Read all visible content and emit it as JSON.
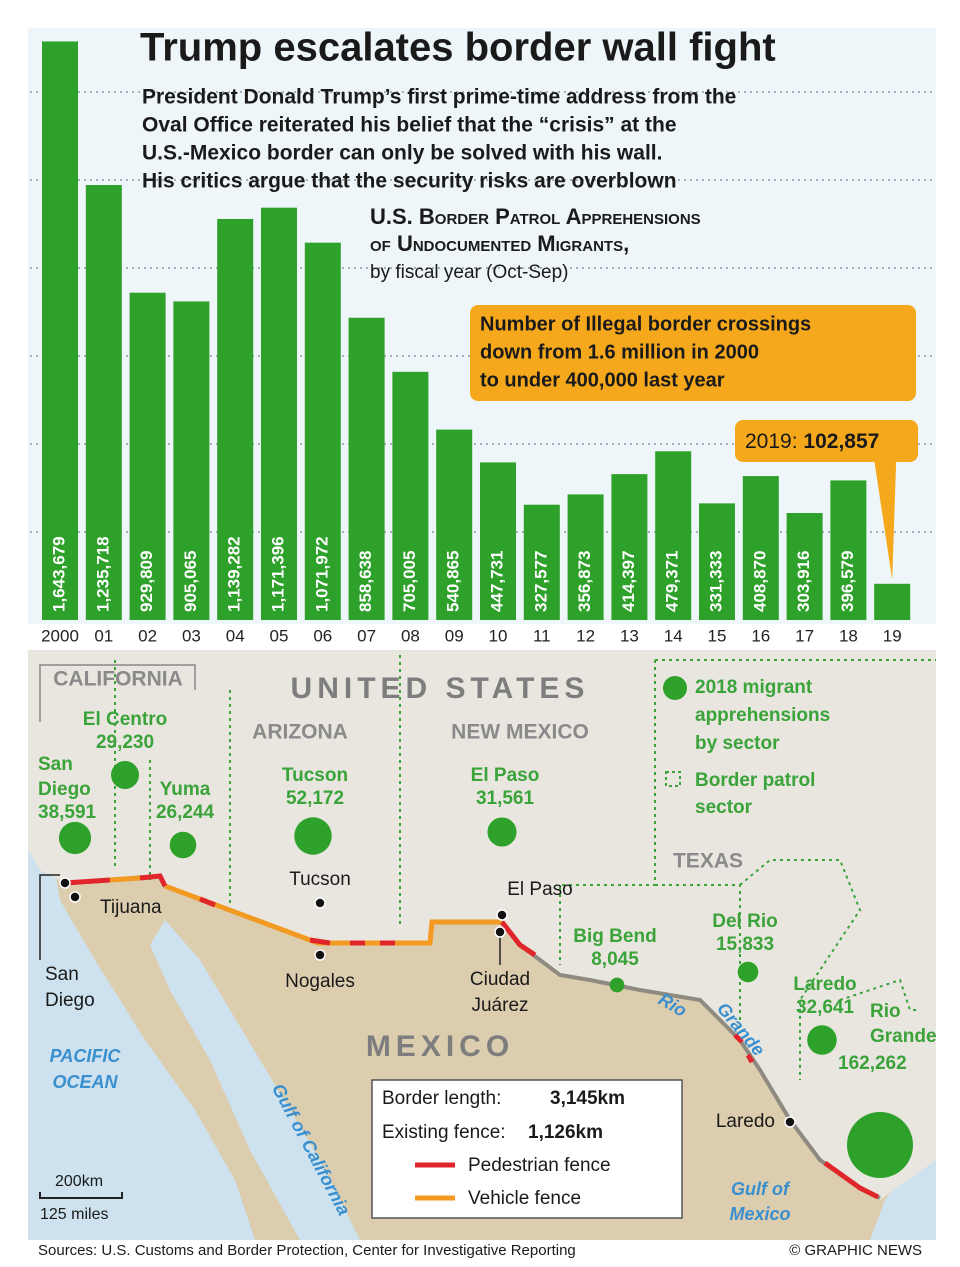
{
  "header": {
    "title": "Trump escalates border wall fight",
    "subtitle": [
      "President Donald Trump’s first prime-time address from the",
      "Oval Office reiterated his belief that the “crisis” at the",
      "U.S.-Mexico border can only be solved with his wall.",
      "His critics argue that the security risks are overblown"
    ]
  },
  "chart_data": {
    "type": "bar",
    "title": [
      "U.S. Border Patrol Apprehensions",
      "of Undocumented Migrants,"
    ],
    "subtitle": "by fiscal year (Oct-Sep)",
    "annotation": [
      "Number of Illegal border crossings",
      "down from 1.6 million in 2000",
      "to under 400,000 last year"
    ],
    "callout_label": "2019:",
    "categories": [
      "2000",
      "01",
      "02",
      "03",
      "04",
      "05",
      "06",
      "07",
      "08",
      "09",
      "10",
      "11",
      "12",
      "13",
      "14",
      "15",
      "16",
      "17",
      "18",
      "19"
    ],
    "values": [
      1643679,
      1235718,
      929809,
      905065,
      1139282,
      1171396,
      1071972,
      858638,
      705005,
      540865,
      447731,
      327577,
      356873,
      414397,
      479371,
      331333,
      408870,
      303916,
      396579,
      102857
    ],
    "value_labels": [
      "1,643,679",
      "1,235,718",
      "929,809",
      "905,065",
      "1,139,282",
      "1,171,396",
      "1,071,972",
      "858,638",
      "705,005",
      "540,865",
      "447,731",
      "327,577",
      "356,873",
      "414,397",
      "479,371",
      "331,333",
      "408,870",
      "303,916",
      "396,579",
      "102,857"
    ],
    "color": "#2ea12a",
    "ylim": [
      0,
      1750000
    ],
    "yticks": [
      250000,
      500000,
      750000,
      1000000,
      1250000,
      1500000
    ],
    "grid": true
  },
  "map": {
    "countries": [
      "UNITED STATES",
      "MEXICO"
    ],
    "states": [
      "CALIFORNIA",
      "ARIZONA",
      "NEW MEXICO",
      "TEXAS"
    ],
    "sectors": [
      {
        "name": [
          "El Centro"
        ],
        "value": 29230,
        "value_label": "29,230"
      },
      {
        "name": [
          "San",
          "Diego"
        ],
        "value": 38591,
        "value_label": "38,591"
      },
      {
        "name": [
          "Yuma"
        ],
        "value": 26244,
        "value_label": "26,244"
      },
      {
        "name": [
          "Tucson"
        ],
        "value": 52172,
        "value_label": "52,172"
      },
      {
        "name": [
          "El Paso"
        ],
        "value": 31561,
        "value_label": "31,561"
      },
      {
        "name": [
          "Big Bend"
        ],
        "value": 8045,
        "value_label": "8,045"
      },
      {
        "name": [
          "Del Rio"
        ],
        "value": 15833,
        "value_label": "15,833"
      },
      {
        "name": [
          "Laredo"
        ],
        "value": 32641,
        "value_label": "32,641"
      },
      {
        "name": [
          "Rio",
          "Grande"
        ],
        "value": 162262,
        "value_label": "162,262"
      }
    ],
    "cities": [
      [
        "San",
        "Diego"
      ],
      [
        "Tijuana"
      ],
      [
        "Tucson"
      ],
      [
        "Nogales"
      ],
      [
        "El Paso"
      ],
      [
        "Ciudad",
        "Juárez"
      ],
      [
        "Laredo"
      ]
    ],
    "water": [
      [
        "PACIFIC",
        "OCEAN"
      ],
      [
        "Gulf of California"
      ],
      [
        "Rio",
        "Grande"
      ],
      [
        "Gulf of",
        "Mexico"
      ]
    ],
    "legend": {
      "circle": [
        "2018 migrant",
        "apprehensions",
        "by sector"
      ],
      "sector": [
        "Border patrol",
        "sector"
      ]
    },
    "info": {
      "border_label": "Border length:",
      "border_value": "3,145km",
      "fence_label": "Existing fence:",
      "fence_value": "1,126km",
      "pedestrian": "Pedestrian fence",
      "vehicle": "Vehicle fence"
    },
    "scale": [
      "200km",
      "125 miles"
    ]
  },
  "footer": {
    "sources": "Sources: U.S. Customs and Border Protection, Center for Investigative Reporting",
    "credit": "© GRAPHIC NEWS"
  }
}
